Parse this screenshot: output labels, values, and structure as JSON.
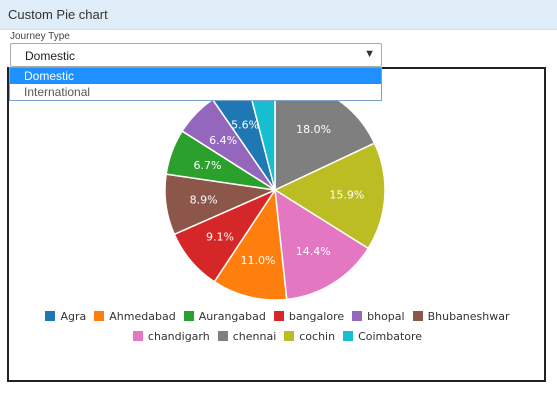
{
  "panel": {
    "title": "Custom Pie chart"
  },
  "journey_type": {
    "label": "Journey Type",
    "selected": "Domestic",
    "caret": "▼",
    "options": [
      "Domestic",
      "International"
    ]
  },
  "chart_data": {
    "type": "pie",
    "slices": [
      {
        "name": "Agra",
        "value": 5.6,
        "label": "5.6%",
        "color": "#1f77b4"
      },
      {
        "name": "Ahmedabad",
        "value": 11.0,
        "label": "11.0%",
        "color": "#ff7f0e"
      },
      {
        "name": "Aurangabad",
        "value": 6.7,
        "label": "6.7%",
        "color": "#2ca02c"
      },
      {
        "name": "bangalore",
        "value": 9.1,
        "label": "9.1%",
        "color": "#d62728"
      },
      {
        "name": "bhopal",
        "value": 6.4,
        "label": "6.4%",
        "color": "#9467bd"
      },
      {
        "name": "Bhubaneshwar",
        "value": 8.9,
        "label": "8.9%",
        "color": "#8c564b"
      },
      {
        "name": "chandigarh",
        "value": 14.4,
        "label": "14.4%",
        "color": "#e377c2"
      },
      {
        "name": "chennai",
        "value": 18.0,
        "label": "18.0%",
        "color": "#7f7f7f"
      },
      {
        "name": "cochin",
        "value": 15.9,
        "label": "15.9%",
        "color": "#bcbd22"
      },
      {
        "name": "Coimbatore",
        "value": 4.0,
        "label": "",
        "color": "#17becf"
      }
    ],
    "draw_order": [
      "chennai",
      "cochin",
      "chandigarh",
      "Ahmedabad",
      "bangalore",
      "Bhubaneshwar",
      "Aurangabad",
      "bhopal",
      "Agra",
      "Coimbatore"
    ],
    "legend_rows": [
      [
        "Agra",
        "Ahmedabad",
        "Aurangabad",
        "bangalore",
        "bhopal",
        "Bhubaneshwar"
      ],
      [
        "chandigarh",
        "chennai",
        "cochin",
        "Coimbatore"
      ]
    ],
    "legend_position": "bottom"
  }
}
